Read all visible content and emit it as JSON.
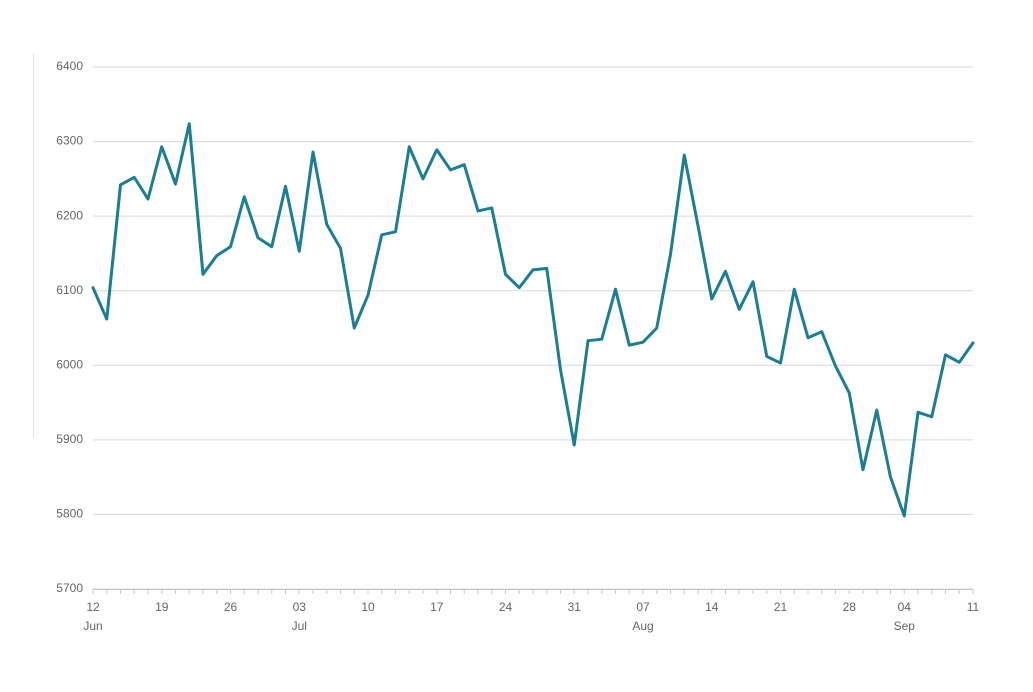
{
  "chart_data": {
    "type": "line",
    "categories": [
      "12",
      null,
      null,
      null,
      null,
      "19",
      null,
      null,
      null,
      null,
      "26",
      null,
      null,
      null,
      null,
      "03",
      null,
      null,
      null,
      null,
      "10",
      null,
      null,
      null,
      null,
      "17",
      null,
      null,
      null,
      null,
      "24",
      null,
      null,
      null,
      null,
      "31",
      null,
      null,
      null,
      null,
      "07",
      null,
      null,
      null,
      null,
      "14",
      null,
      null,
      null,
      null,
      "21",
      null,
      null,
      null,
      null,
      "28",
      null,
      null,
      null,
      "04",
      null,
      null,
      null,
      null,
      "11"
    ],
    "month_labels": [
      {
        "index": 0,
        "label": "Jun"
      },
      {
        "index": 15,
        "label": "Jul"
      },
      {
        "index": 40,
        "label": "Aug"
      },
      {
        "index": 59,
        "label": "Sep"
      }
    ],
    "series": [
      {
        "color": "#1a7f96",
        "values": [
          6104,
          6062,
          6242,
          6252,
          6223,
          6293,
          6243,
          6324,
          6122,
          6147,
          6159,
          6226,
          6171,
          6159,
          6240,
          6153,
          6286,
          6189,
          6157,
          6050,
          6094,
          6175,
          6179,
          6293,
          6250,
          6289,
          6262,
          6269,
          6207,
          6211,
          6122,
          6104,
          6128,
          6130,
          5994,
          5893,
          6033,
          6035,
          6102,
          6027,
          6031,
          6050,
          6149,
          6282,
          6187,
          6089,
          6126,
          6075,
          6112,
          6012,
          6003,
          6102,
          6037,
          6045,
          5999,
          5963,
          5860,
          5940,
          5850,
          5798,
          5937,
          5931,
          6014,
          6004,
          6030
        ]
      }
    ],
    "ylim": [
      5700,
      6400
    ],
    "yticks": [
      5700,
      5800,
      5900,
      6000,
      6100,
      6200,
      6300,
      6400
    ],
    "grid": true
  }
}
